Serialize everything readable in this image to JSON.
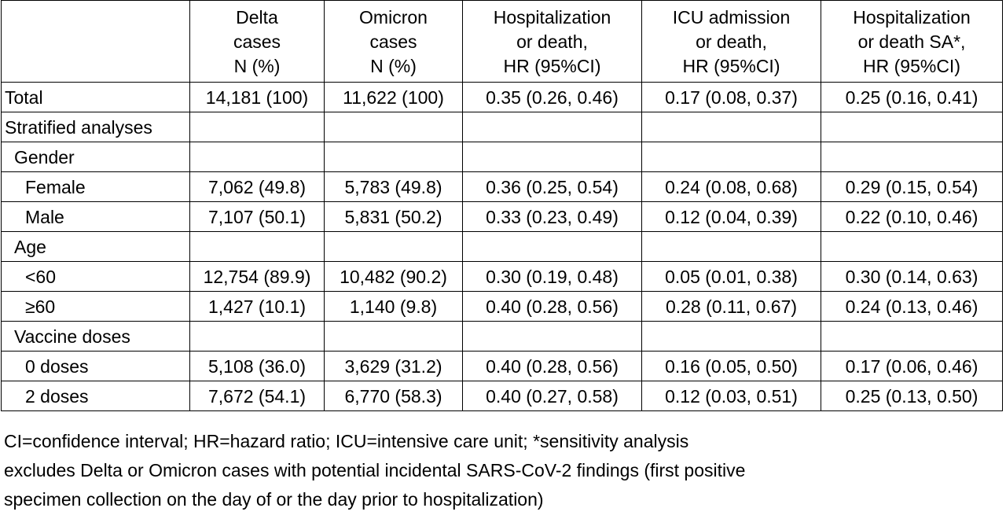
{
  "table": {
    "headers": [
      {
        "lines": []
      },
      {
        "lines": [
          "Delta",
          "cases",
          "N (%)"
        ]
      },
      {
        "lines": [
          "Omicron",
          "cases",
          "N (%)"
        ]
      },
      {
        "lines": [
          "Hospitalization",
          "or death,",
          "HR (95%CI)"
        ]
      },
      {
        "lines": [
          "ICU admission",
          "or death,",
          "HR (95%CI)"
        ]
      },
      {
        "lines": [
          "Hospitalization",
          "or death SA*,",
          "HR (95%CI)"
        ]
      }
    ],
    "rows": [
      {
        "label": "Total",
        "indent": 0,
        "cells": [
          "14,181 (100)",
          "11,622 (100)",
          "0.35 (0.26, 0.46)",
          "0.17 (0.08, 0.37)",
          "0.25 (0.16, 0.41)"
        ]
      },
      {
        "label": "Stratified analyses",
        "indent": 0,
        "cells": [
          "",
          "",
          "",
          "",
          ""
        ]
      },
      {
        "label": "Gender",
        "indent": 1,
        "cells": [
          "",
          "",
          "",
          "",
          ""
        ]
      },
      {
        "label": "Female",
        "indent": 2,
        "cells": [
          "7,062 (49.8)",
          "5,783 (49.8)",
          "0.36 (0.25, 0.54)",
          "0.24 (0.08, 0.68)",
          "0.29 (0.15, 0.54)"
        ]
      },
      {
        "label": "Male",
        "indent": 2,
        "cells": [
          "7,107 (50.1)",
          "5,831 (50.2)",
          "0.33 (0.23, 0.49)",
          "0.12 (0.04, 0.39)",
          "0.22 (0.10, 0.46)"
        ]
      },
      {
        "label": "Age",
        "indent": 1,
        "cells": [
          "",
          "",
          "",
          "",
          ""
        ]
      },
      {
        "label": "<60",
        "indent": 2,
        "cells": [
          "12,754 (89.9)",
          "10,482 (90.2)",
          "0.30 (0.19, 0.48)",
          "0.05 (0.01, 0.38)",
          "0.30 (0.14, 0.63)"
        ]
      },
      {
        "label": "≥60",
        "indent": 2,
        "cells": [
          "1,427 (10.1)",
          "1,140 (9.8)",
          "0.40 (0.28, 0.56)",
          "0.28 (0.11, 0.67)",
          "0.24 (0.13, 0.46)"
        ]
      },
      {
        "label": "Vaccine doses",
        "indent": 1,
        "cells": [
          "",
          "",
          "",
          "",
          ""
        ]
      },
      {
        "label": "0 doses",
        "indent": 2,
        "cells": [
          "5,108 (36.0)",
          "3,629 (31.2)",
          "0.40 (0.28, 0.56)",
          "0.16 (0.05, 0.50)",
          "0.17 (0.06, 0.46)"
        ]
      },
      {
        "label": "2 doses",
        "indent": 2,
        "cells": [
          "7,672 (54.1)",
          "6,770 (58.3)",
          "0.40 (0.27, 0.58)",
          "0.12 (0.03, 0.51)",
          "0.25 (0.13, 0.50)"
        ]
      }
    ]
  },
  "footnote": {
    "lines": [
      "CI=confidence interval; HR=hazard ratio; ICU=intensive care unit; *sensitivity analysis",
      "excludes Delta or Omicron cases with potential incidental SARS-CoV-2 findings (first positive",
      "specimen collection on the day of or the day prior to hospitalization)"
    ]
  }
}
